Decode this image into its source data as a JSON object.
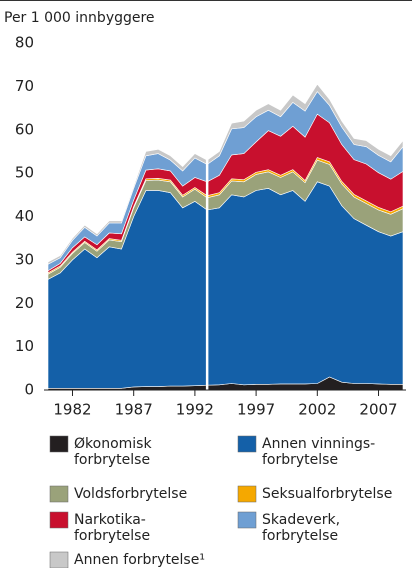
{
  "chart_data": {
    "type": "stacked_area",
    "axis_label": "Per 1 000 innbyggere",
    "x": [
      1980,
      1981,
      1982,
      1983,
      1984,
      1985,
      1986,
      1987,
      1988,
      1989,
      1990,
      1991,
      1992,
      1993,
      1994,
      1995,
      1996,
      1997,
      1998,
      1999,
      2000,
      2001,
      2002,
      2003,
      2004,
      2005,
      2006,
      2007,
      2008,
      2009
    ],
    "xlim": [
      1980,
      2009
    ],
    "xticks": [
      1982,
      1987,
      1992,
      1997,
      2002,
      2007
    ],
    "ylim": [
      0,
      80
    ],
    "yticks": [
      0,
      10,
      20,
      30,
      40,
      50,
      60,
      70,
      80
    ],
    "series_break": 1993,
    "series": [
      {
        "name": "Økonomisk\nforbrytelse",
        "color": "#231f20",
        "values": [
          0.4,
          0.4,
          0.4,
          0.4,
          0.4,
          0.4,
          0.4,
          0.7,
          0.8,
          0.8,
          0.9,
          0.9,
          1.0,
          1.1,
          1.2,
          1.5,
          1.2,
          1.3,
          1.3,
          1.4,
          1.4,
          1.4,
          1.5,
          3.0,
          1.8,
          1.5,
          1.5,
          1.4,
          1.3,
          1.3
        ]
      },
      {
        "name": "Annen vinnings-\nforbrytelse",
        "color": "#1460a8",
        "values": [
          25.1,
          26.6,
          29.6,
          32.1,
          30.1,
          32.6,
          32.1,
          39.3,
          45.2,
          45.2,
          44.6,
          41.1,
          42.5,
          40.4,
          40.8,
          43.5,
          43.3,
          44.7,
          45.2,
          43.6,
          44.6,
          42.1,
          46.5,
          44.0,
          40.7,
          38.0,
          36.5,
          35.1,
          34.2,
          35.2
        ]
      },
      {
        "name": "Voldsforbrytelse",
        "color": "#9aa27a",
        "values": [
          1.2,
          1.3,
          1.5,
          1.5,
          1.5,
          1.6,
          1.7,
          2.0,
          2.3,
          2.4,
          2.5,
          2.5,
          2.8,
          2.8,
          3.0,
          3.2,
          3.5,
          3.7,
          3.8,
          4.0,
          4.3,
          4.3,
          5.0,
          5.0,
          5.0,
          5.0,
          5.0,
          5.0,
          5.0,
          5.3
        ]
      },
      {
        "name": "Seksualforbrytelse",
        "color": "#f5a800",
        "values": [
          0.3,
          0.3,
          0.3,
          0.3,
          0.3,
          0.3,
          0.3,
          0.3,
          0.4,
          0.4,
          0.4,
          0.4,
          0.4,
          0.5,
          0.5,
          0.5,
          0.5,
          0.5,
          0.5,
          0.5,
          0.5,
          0.5,
          0.6,
          0.6,
          0.6,
          0.6,
          0.6,
          0.6,
          0.6,
          0.6
        ]
      },
      {
        "name": "Narkotika-\nforbrytelse",
        "color": "#c8102e",
        "values": [
          0.5,
          0.6,
          1,
          1,
          1.2,
          1.3,
          1.5,
          1.5,
          2,
          2.2,
          2.1,
          2.1,
          2.3,
          3.2,
          4,
          5.5,
          6,
          7,
          9,
          9,
          10,
          10,
          10,
          9,
          8.5,
          8,
          8.5,
          8,
          7.5,
          8
        ]
      },
      {
        "name": "Skadeverk,\nforbrytelse",
        "color": "#6f9fd3",
        "values": [
          1.5,
          1.3,
          1.7,
          2.2,
          2,
          2.3,
          2.5,
          2.7,
          3.3,
          3.5,
          2.5,
          3.5,
          4.5,
          4,
          4.5,
          6,
          6,
          5.8,
          4.7,
          4.5,
          5.5,
          6,
          5.2,
          4,
          4,
          3.5,
          4,
          4,
          4,
          5.7
        ]
      },
      {
        "name": "Annen forbrytelse¹",
        "color": "#c8c8c8",
        "values": [
          0.5,
          0.5,
          0.5,
          0.5,
          0.5,
          0.5,
          0.5,
          0.5,
          1,
          1,
          1,
          1,
          1,
          1,
          1,
          1.3,
          1.5,
          1.5,
          1.5,
          1.5,
          1.7,
          1.7,
          1.7,
          1.4,
          1.4,
          1.4,
          1.4,
          1.4,
          1.4,
          1.4
        ]
      }
    ]
  }
}
